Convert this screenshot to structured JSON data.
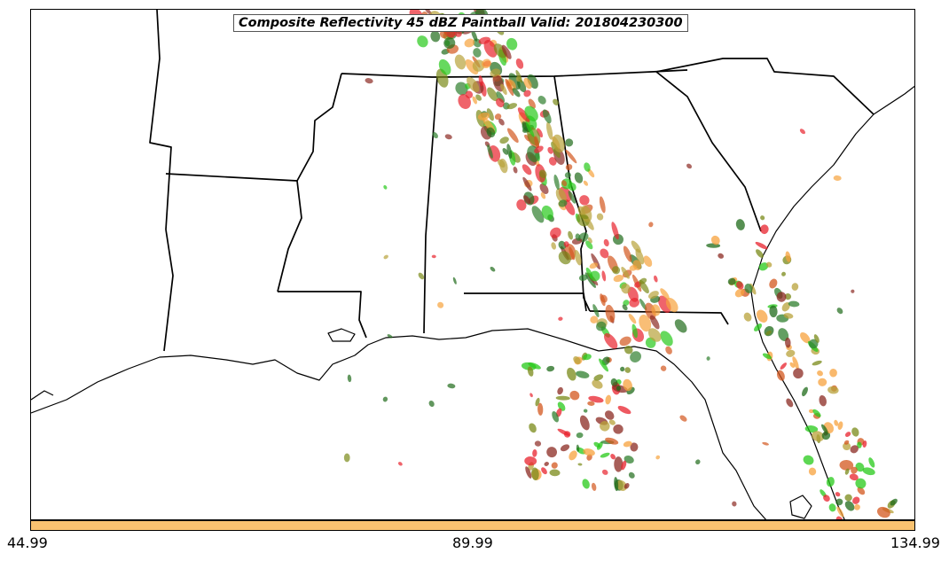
{
  "title": "Composite Reflectivity 45 dBZ Paintball Valid: 201804230300",
  "colorbar": {
    "tick_labels": [
      "44.99",
      "89.99",
      "134.99"
    ],
    "color": "#f9c270"
  },
  "member_colors": [
    "#e8222c",
    "#f7a23c",
    "#8b2a22",
    "#2f7f2e",
    "#27c919",
    "#7a8a18",
    "#b8a23a",
    "#1f6b1a",
    "#d3571e"
  ]
}
